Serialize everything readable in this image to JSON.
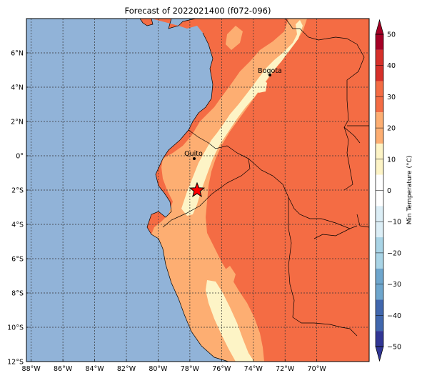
{
  "map": {
    "title": "Forecast of 2022021400 (f072-096)",
    "variable": "Min Temperature",
    "extent": {
      "lon": [
        -88.3,
        -66.7
      ],
      "lat": [
        -12,
        8
      ]
    },
    "lat_ticks": [
      "6°N",
      "4°N",
      "2°N",
      "0°",
      "2°S",
      "4°S",
      "6°S",
      "8°S",
      "10°S",
      "12°S"
    ],
    "lon_ticks": [
      "88°W",
      "86°W",
      "84°W",
      "82°W",
      "80°W",
      "78°W",
      "76°W",
      "74°W",
      "72°W",
      "70°W"
    ],
    "colors": {
      "ocean": "#91b3d8",
      "band_0_10": "#fdf4c6",
      "band_10_20": "#fdae72",
      "band_20_30": "#f46c44",
      "band_30_40": "#d6302a",
      "band_40_50": "#a50026"
    }
  },
  "cities": [
    {
      "name": "Bogota",
      "lat": 4.6,
      "lon": -74.1
    },
    {
      "name": "Quito",
      "lat": -0.2,
      "lon": -78.5
    }
  ],
  "marker": {
    "symbol": "star",
    "lat": -2.0,
    "lon": -78.4,
    "color": "#ff0000"
  },
  "colorbar": {
    "label": "Min Temperature (°C)",
    "ticks": [
      "50",
      "40",
      "30",
      "20",
      "10",
      "0",
      "−10",
      "−20",
      "−30",
      "−40",
      "−50"
    ],
    "colors": [
      "#a50026",
      "#d6302a",
      "#f46c44",
      "#fdae72",
      "#fdf4c6",
      "#ffffff",
      "#dceef6",
      "#a9d4e6",
      "#6ea6cd",
      "#4167ae",
      "#313695"
    ]
  }
}
